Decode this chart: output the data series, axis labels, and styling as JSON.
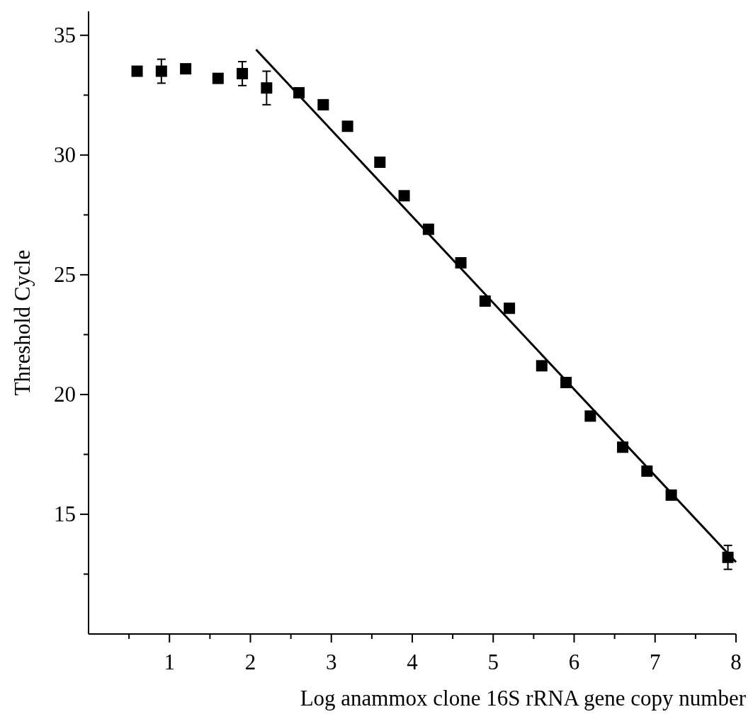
{
  "chart_data": {
    "type": "scatter",
    "xlabel": "Log anammox clone 16S rRNA gene copy number",
    "ylabel": "Threshold Cycle",
    "xlim": [
      0,
      8
    ],
    "ylim": [
      10,
      36
    ],
    "xticks": [
      {
        "value": 0.5,
        "label": null
      },
      1,
      {
        "value": 1.5,
        "label": null
      },
      2,
      {
        "value": 2.5,
        "label": null
      },
      3,
      {
        "value": 3.5,
        "label": null
      },
      4,
      {
        "value": 4.5,
        "label": null
      },
      5,
      {
        "value": 5.5,
        "label": null
      },
      6,
      {
        "value": 6.5,
        "label": null
      },
      7,
      {
        "value": 7.5,
        "label": null
      },
      8
    ],
    "yticks": [
      {
        "value": 12.5,
        "label": null
      },
      15,
      {
        "value": 17.5,
        "label": null
      },
      20,
      {
        "value": 22.5,
        "label": null
      },
      25,
      {
        "value": 27.5,
        "label": null
      },
      30,
      {
        "value": 32.5,
        "label": null
      },
      35
    ],
    "grid": false,
    "marker": "square",
    "series": [
      {
        "color": "#000000",
        "x": [
          0.6,
          0.9,
          1.2,
          1.6,
          1.9,
          2.2,
          2.6,
          2.9,
          3.2,
          3.6,
          3.9,
          4.2,
          4.6,
          4.9,
          5.2,
          5.6,
          5.9,
          6.2,
          6.6,
          6.9,
          7.2,
          7.9
        ],
        "values": [
          33.5,
          33.5,
          33.6,
          33.2,
          33.4,
          32.8,
          32.6,
          32.1,
          31.2,
          29.7,
          28.3,
          26.9,
          25.5,
          23.9,
          23.6,
          21.2,
          20.5,
          19.1,
          17.8,
          16.8,
          15.8,
          13.2
        ],
        "errors": [
          null,
          0.5,
          null,
          null,
          0.5,
          0.7,
          null,
          null,
          null,
          null,
          null,
          null,
          null,
          null,
          null,
          null,
          null,
          null,
          null,
          null,
          null,
          0.5
        ]
      },
      {
        "type": "line",
        "color": "#000000",
        "x": [
          2.07,
          8.0
        ],
        "values": [
          34.4,
          13.0
        ],
        "line_style": "solid",
        "marker": "none"
      }
    ]
  }
}
